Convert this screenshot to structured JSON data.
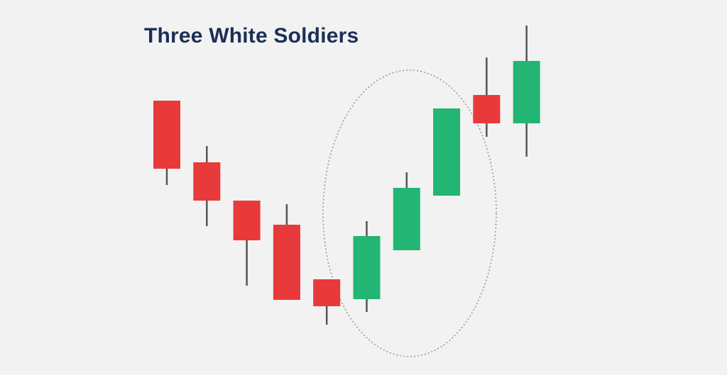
{
  "chart_data": {
    "type": "candlestick",
    "title": "Three White Soldiers",
    "xlabel": "",
    "ylabel": "",
    "grid": false,
    "colors": {
      "bearish": "#e8393b",
      "bullish": "#22b573",
      "wick": "#555555",
      "highlight": "#9a9a9a",
      "title": "#1b2f57"
    },
    "highlight": {
      "shape": "dashed-ellipse",
      "candles": [
        6,
        7,
        8
      ]
    },
    "candles": [
      {
        "direction": "bearish",
        "open": 387,
        "close": 291,
        "high": 387,
        "low": 268
      },
      {
        "direction": "bearish",
        "open": 300,
        "close": 246,
        "high": 323,
        "low": 210
      },
      {
        "direction": "bearish",
        "open": 246,
        "close": 190,
        "high": 246,
        "low": 126
      },
      {
        "direction": "bearish",
        "open": 212,
        "close": 106,
        "high": 241,
        "low": 106
      },
      {
        "direction": "bearish",
        "open": 135,
        "close": 97,
        "high": 135,
        "low": 71
      },
      {
        "direction": "bullish",
        "open": 107,
        "close": 196,
        "high": 217,
        "low": 89
      },
      {
        "direction": "bullish",
        "open": 176,
        "close": 264,
        "high": 286,
        "low": 176
      },
      {
        "direction": "bullish",
        "open": 253,
        "close": 376,
        "high": 376,
        "low": 253
      },
      {
        "direction": "bearish",
        "open": 395,
        "close": 355,
        "high": 448,
        "low": 336
      },
      {
        "direction": "bullish",
        "open": 355,
        "close": 443,
        "high": 493,
        "low": 308
      }
    ],
    "ylim": [
      0,
      529
    ]
  }
}
